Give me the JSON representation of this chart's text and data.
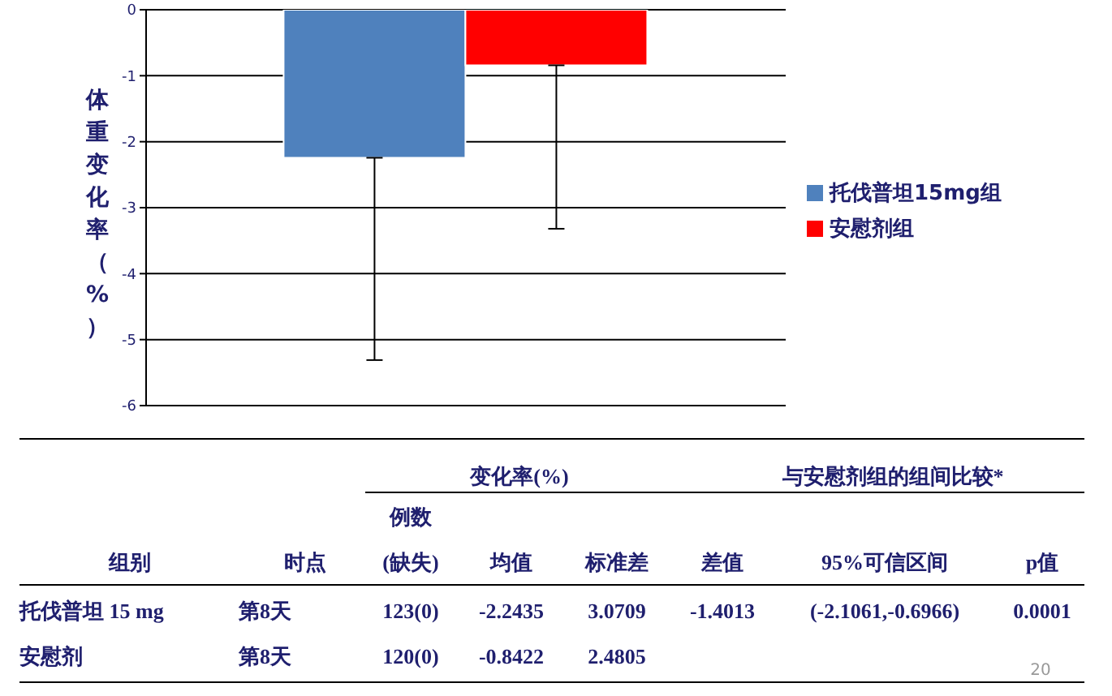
{
  "chart_data": {
    "type": "bar",
    "categories": [
      null
    ],
    "ylabel": "体重变化率（%）",
    "series": [
      {
        "name": "托伐普坦15mg组",
        "color": "#4f81bd",
        "values": [
          -2.2435
        ],
        "errors": [
          [
            -5.31,
            -2.2435
          ]
        ]
      },
      {
        "name": "安慰剂组",
        "color": "#ff0000",
        "values": [
          -0.8422
        ],
        "errors": [
          [
            -3.32,
            -0.8422
          ]
        ]
      }
    ],
    "ylim": [
      -6,
      0
    ],
    "yticks": [
      0,
      -1,
      -2,
      -3,
      -4,
      -5,
      -6
    ],
    "grid": "y",
    "legend": "right",
    "annotations": [
      "变化率(%)",
      "与安慰剂组的组间比较*",
      "例数",
      "组别",
      "时点",
      "(缺失)",
      "均值",
      "标准差",
      "差值",
      "95%可信区间",
      "p值",
      "托伐普坦 15 mg",
      "第8天",
      "123(0)",
      "-2.2435",
      "3.0709",
      "-1.4013",
      "(-2.1061,-0.6966)",
      "0.0001",
      "安慰剂",
      "第8天",
      "120(0)",
      "-0.8422",
      "2.4805",
      "20"
    ]
  }
}
